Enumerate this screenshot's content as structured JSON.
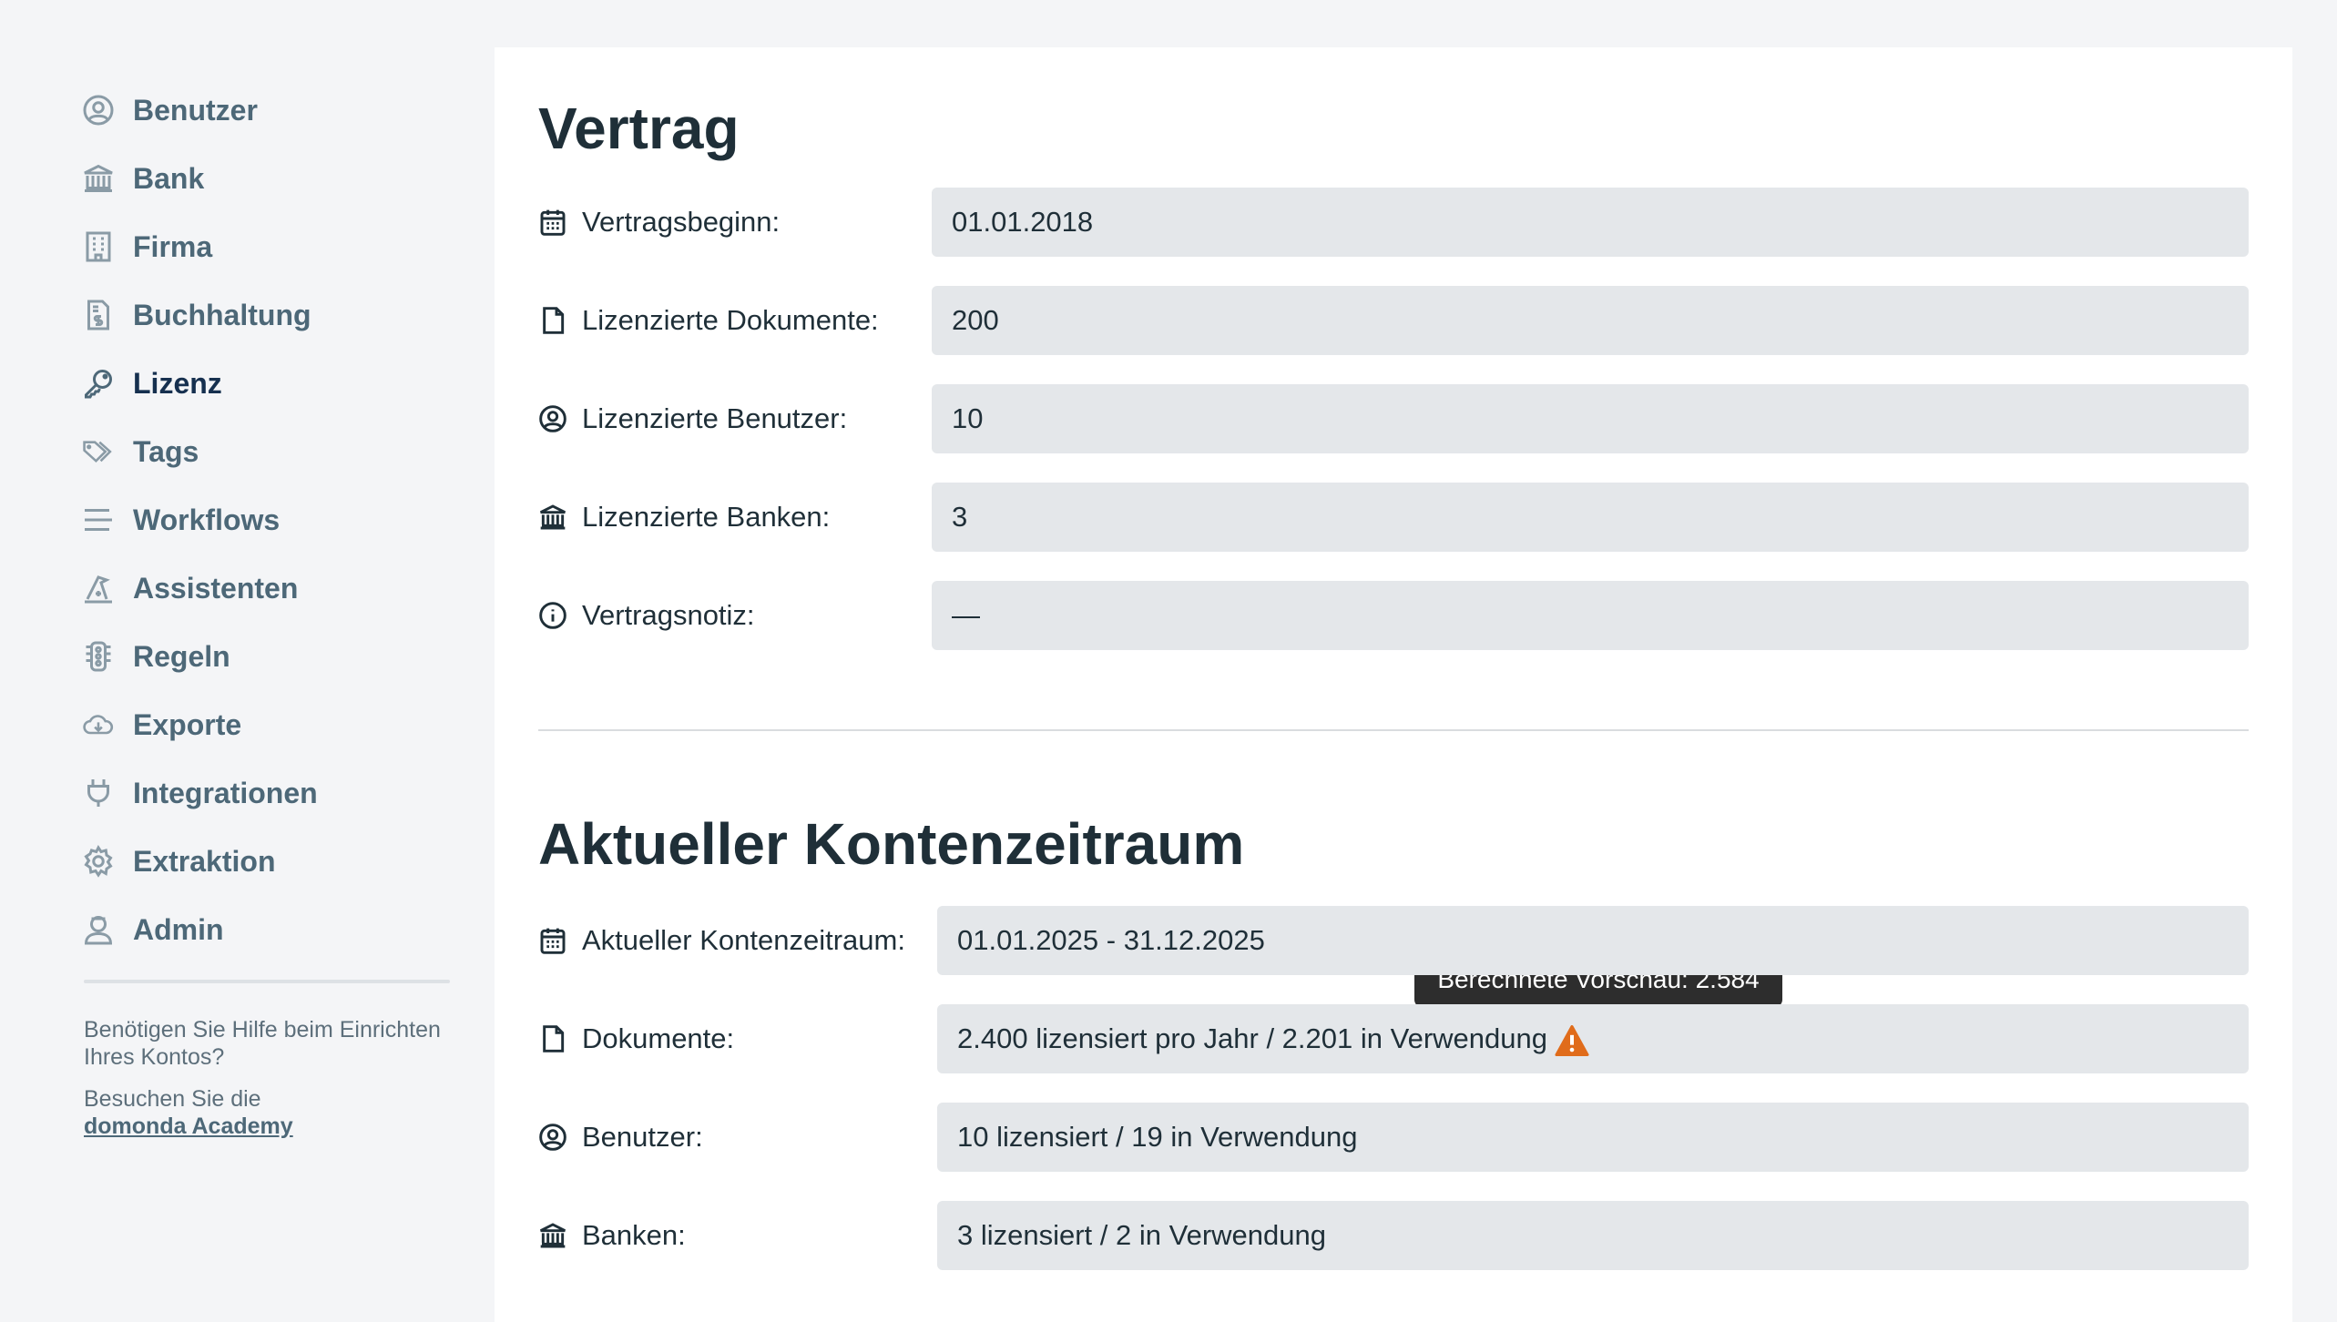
{
  "sidebar": {
    "items": [
      {
        "label": "Benutzer",
        "icon": "user-circle-icon"
      },
      {
        "label": "Bank",
        "icon": "bank-icon"
      },
      {
        "label": "Firma",
        "icon": "building-icon"
      },
      {
        "label": "Buchhaltung",
        "icon": "invoice-dollar-icon"
      },
      {
        "label": "Lizenz",
        "icon": "key-icon",
        "active": true
      },
      {
        "label": "Tags",
        "icon": "tags-icon"
      },
      {
        "label": "Workflows",
        "icon": "lines-icon"
      },
      {
        "label": "Assistenten",
        "icon": "wizard-hat-icon"
      },
      {
        "label": "Regeln",
        "icon": "traffic-light-icon"
      },
      {
        "label": "Exporte",
        "icon": "cloud-download-icon"
      },
      {
        "label": "Integrationen",
        "icon": "plug-icon"
      },
      {
        "label": "Extraktion",
        "icon": "gear-icon"
      },
      {
        "label": "Admin",
        "icon": "admin-user-icon"
      }
    ],
    "help_text": "Benötigen Sie Hilfe beim Einrichten Ihres Kontos?",
    "help_visit": "Besuchen Sie die",
    "help_link": "domonda Academy"
  },
  "contract": {
    "title": "Vertrag",
    "rows": [
      {
        "label": "Vertragsbeginn:",
        "value": "01.01.2018",
        "icon": "calendar-icon"
      },
      {
        "label": "Lizenzierte Dokumente:",
        "value": "200",
        "icon": "document-icon"
      },
      {
        "label": "Lizenzierte Benutzer:",
        "value": "10",
        "icon": "user-circle-icon"
      },
      {
        "label": "Lizenzierte Banken:",
        "value": "3",
        "icon": "bank-icon"
      },
      {
        "label": "Vertragsnotiz:",
        "value": "—",
        "icon": "info-icon"
      }
    ]
  },
  "period": {
    "title": "Aktueller Kontenzeitraum",
    "rows": [
      {
        "label": "Aktueller Kontenzeitraum:",
        "value": "01.01.2025 - 31.12.2025",
        "icon": "calendar-icon"
      },
      {
        "label": "Dokumente:",
        "value": "2.400 lizensiert pro Jahr / 2.201 in Verwendung",
        "icon": "document-icon"
      },
      {
        "label": "Benutzer:",
        "value": "10 lizensiert / 19 in Verwendung",
        "icon": "user-circle-icon"
      },
      {
        "label": "Banken:",
        "value": "3 lizensiert / 2 in Verwendung",
        "icon": "bank-icon"
      }
    ],
    "tooltip": "Berechnete Vorschau: 2.584",
    "warning_color": "#e06c1b"
  }
}
